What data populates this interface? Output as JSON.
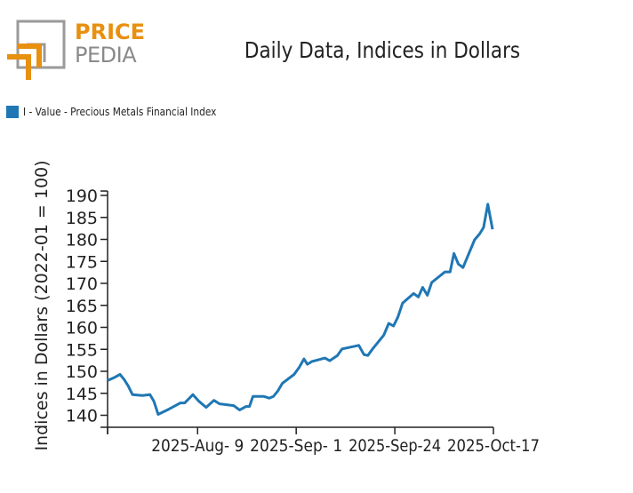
{
  "logo": {
    "line1": "PRICE",
    "line2": "PEDIA",
    "colors": {
      "orange": "#e8900f",
      "gray": "#8a8a8a"
    }
  },
  "chart_data": {
    "type": "line",
    "title": "Daily Data, Indices in Dollars",
    "xlabel": "",
    "ylabel": "Indices in Dollars (2022-01 = 100)",
    "ylim": [
      137.3,
      191
    ],
    "yticks": [
      140,
      145,
      150,
      155,
      160,
      165,
      170,
      175,
      180,
      185,
      190
    ],
    "ytick_labels": [
      "140",
      "145",
      "150",
      "155",
      "160",
      "165",
      "170",
      "175",
      "180",
      "185",
      "190"
    ],
    "xrange_days": [
      0,
      90
    ],
    "xticks_days": [
      0,
      21,
      44,
      67,
      90
    ],
    "xtick_labels": [
      "",
      "2025-Aug- 9",
      "2025-Sep- 1",
      "2025-Sep-24",
      "2025-Oct-17"
    ],
    "grid": false,
    "legend_position": "top-left",
    "series": [
      {
        "name": "I - Value - Precious Metals Financial Index",
        "color": "#1f77b4",
        "x_days": [
          0,
          1.4,
          2.9,
          3.9,
          4.8,
          5.8,
          8.1,
          9.9,
          10.8,
          11.8,
          14.3,
          17.0,
          18.0,
          19.9,
          21.3,
          23.0,
          24.8,
          26.1,
          29.4,
          30.8,
          32.3,
          33.1,
          33.9,
          36.4,
          37.7,
          38.7,
          39.7,
          40.8,
          43.5,
          44.7,
          45.8,
          46.6,
          47.6,
          50.7,
          51.8,
          53.6,
          54.7,
          58.6,
          59.8,
          60.7,
          61.9,
          64.4,
          65.6,
          66.7,
          67.7,
          68.8,
          71.4,
          72.5,
          73.5,
          74.6,
          75.6,
          78.7,
          79.9,
          80.8,
          81.8,
          82.9,
          85.6,
          86.8,
          87.7,
          88.7,
          89.8
        ],
        "values": [
          147.9,
          148.5,
          149.3,
          148.1,
          146.7,
          144.7,
          144.5,
          144.7,
          143.2,
          140.2,
          141.4,
          142.8,
          142.8,
          144.7,
          143.2,
          141.8,
          143.4,
          142.6,
          142.2,
          141.2,
          142.0,
          142.0,
          144.3,
          144.3,
          143.9,
          144.3,
          145.5,
          147.3,
          149.3,
          150.9,
          152.8,
          151.6,
          152.2,
          153.0,
          152.4,
          153.6,
          155.1,
          155.9,
          153.8,
          153.6,
          155.2,
          158.2,
          160.9,
          160.3,
          162.3,
          165.5,
          167.7,
          166.9,
          169.1,
          167.3,
          170.2,
          172.6,
          172.6,
          176.8,
          174.4,
          173.6,
          179.9,
          181.3,
          182.7,
          188.0,
          182.3
        ]
      }
    ]
  }
}
